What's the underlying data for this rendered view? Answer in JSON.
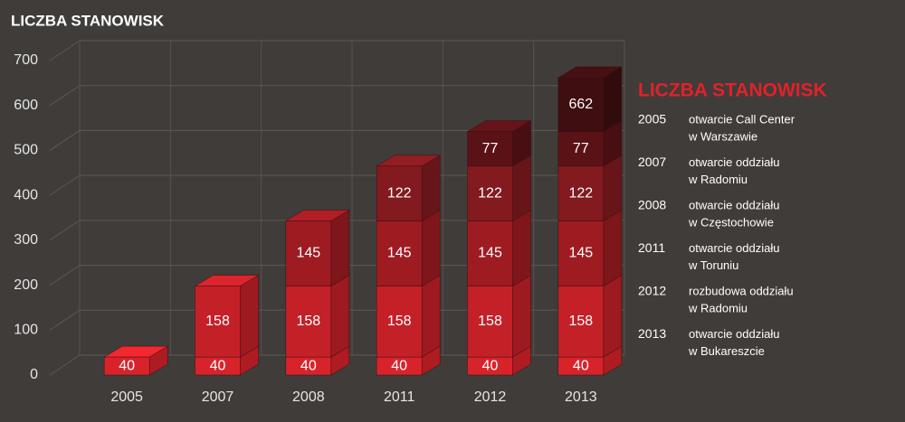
{
  "chart_data": {
    "type": "bar3d_stacked",
    "title": "LICZBA STANOWISK",
    "categories": [
      "2005",
      "2007",
      "2008",
      "2011",
      "2012",
      "2013"
    ],
    "series": [
      {
        "color": "#d9232b",
        "values": [
          40,
          40,
          40,
          40,
          40,
          40
        ]
      },
      {
        "color": "#c42028",
        "values": [
          null,
          158,
          158,
          158,
          158,
          158
        ]
      },
      {
        "color": "#9e1b22",
        "values": [
          null,
          null,
          145,
          145,
          145,
          145
        ]
      },
      {
        "color": "#821a1f",
        "values": [
          null,
          null,
          null,
          122,
          122,
          122
        ]
      },
      {
        "color": "#5b1216",
        "values": [
          null,
          null,
          null,
          null,
          77,
          77
        ]
      },
      {
        "color": "#3f0e10",
        "values": [
          null,
          null,
          null,
          null,
          null,
          120
        ]
      }
    ],
    "annotations": [
      {
        "category": "2013",
        "value": 662
      }
    ],
    "ylim": [
      0,
      700
    ],
    "yticks": [
      0,
      100,
      200,
      300,
      400,
      500,
      600,
      700
    ],
    "grid": true,
    "legend": {
      "title": "LICZBA STANOWISK",
      "items": [
        {
          "year": "2005",
          "lines": [
            "otwarcie Call Center",
            "w Warszawie"
          ]
        },
        {
          "year": "2007",
          "lines": [
            "otwarcie oddziału",
            "w Radomiu"
          ]
        },
        {
          "year": "2008",
          "lines": [
            "otwarcie oddziału",
            "w Częstochowie"
          ]
        },
        {
          "year": "2011",
          "lines": [
            "otwarcie oddziału",
            "w Toruniu"
          ]
        },
        {
          "year": "2012",
          "lines": [
            "rozbudowa oddziału",
            "w Radomiu"
          ]
        },
        {
          "year": "2013",
          "lines": [
            "otwarcie oddziału",
            "w Bukareszcie"
          ]
        }
      ]
    }
  }
}
